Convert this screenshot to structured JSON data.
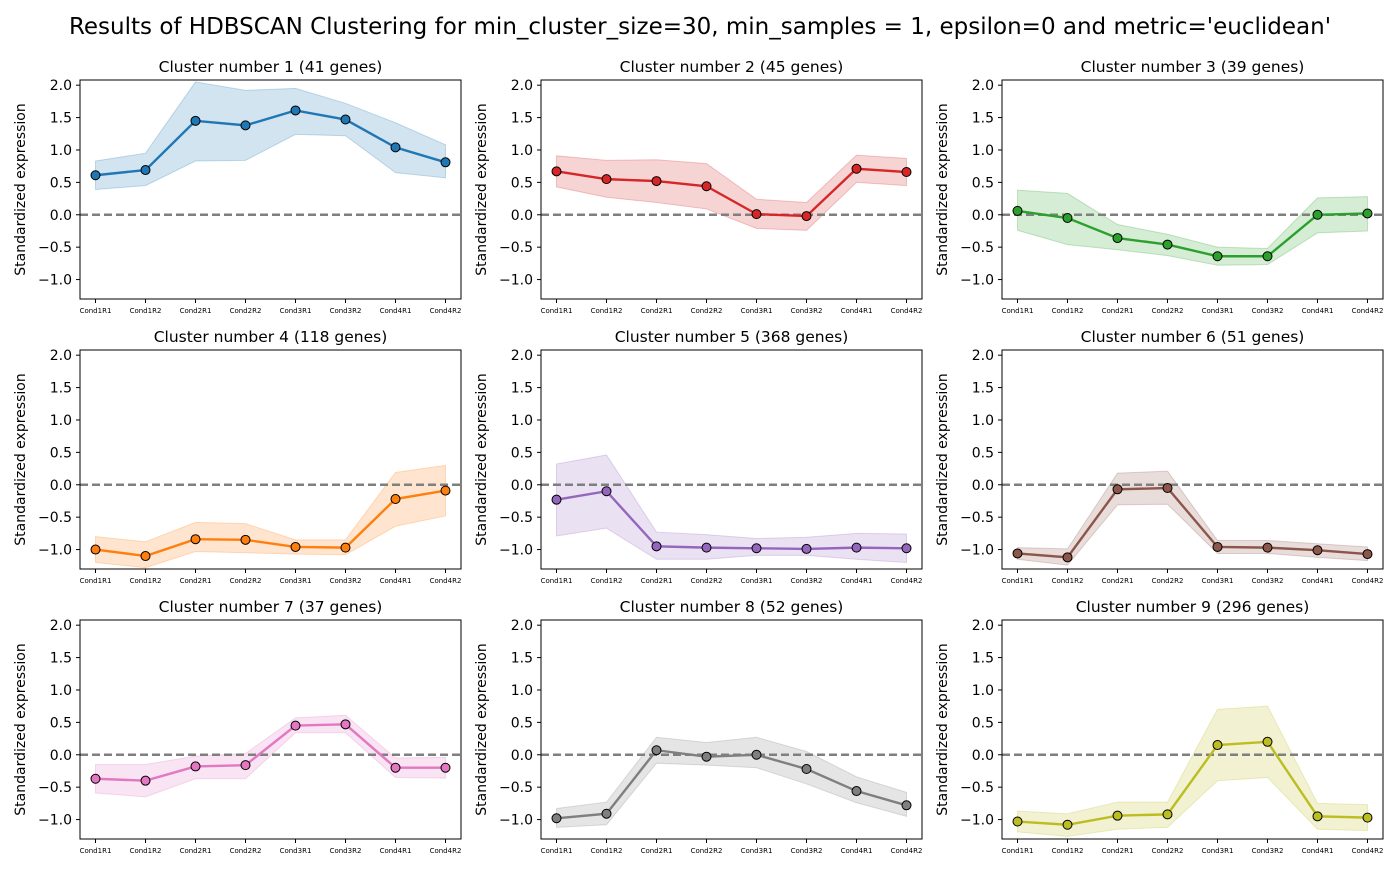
{
  "figure": {
    "title": "Results of HDBSCAN Clustering for min_cluster_size=30, min_samples = 1, epsilon=0 and metric='euclidean'"
  },
  "chart_data": [
    {
      "type": "line",
      "title": "Cluster number 1 (41 genes)",
      "ylabel": "Standardized expression",
      "xlabel": "",
      "categories": [
        "Cond1R1",
        "Cond1R2",
        "Cond2R1",
        "Cond2R2",
        "Cond3R1",
        "Cond3R2",
        "Cond4R1",
        "Cond4R2"
      ],
      "values": [
        0.61,
        0.69,
        1.45,
        1.38,
        1.61,
        1.47,
        1.04,
        0.81
      ],
      "band_upper": [
        0.83,
        0.95,
        2.05,
        1.92,
        1.95,
        1.72,
        1.42,
        1.08
      ],
      "band_lower": [
        0.39,
        0.45,
        0.83,
        0.84,
        1.24,
        1.22,
        0.65,
        0.57
      ],
      "color": "#1f77b4",
      "ylim": [
        -1.3,
        2.08
      ],
      "yticks": [
        2.0,
        1.5,
        1.0,
        0.5,
        0.0,
        -0.5,
        -1.0
      ],
      "reference_line": 0.0
    },
    {
      "type": "line",
      "title": "Cluster number 2 (45 genes)",
      "ylabel": "Standardized expression",
      "xlabel": "",
      "categories": [
        "Cond1R1",
        "Cond1R2",
        "Cond2R1",
        "Cond2R2",
        "Cond3R1",
        "Cond3R2",
        "Cond4R1",
        "Cond4R2"
      ],
      "values": [
        0.67,
        0.55,
        0.52,
        0.44,
        0.01,
        -0.02,
        0.71,
        0.66
      ],
      "band_upper": [
        0.91,
        0.84,
        0.85,
        0.79,
        0.24,
        0.19,
        0.92,
        0.87
      ],
      "band_lower": [
        0.43,
        0.27,
        0.19,
        0.09,
        -0.21,
        -0.24,
        0.5,
        0.45
      ],
      "color": "#d62728",
      "ylim": [
        -1.3,
        2.08
      ],
      "yticks": [
        2.0,
        1.5,
        1.0,
        0.5,
        0.0,
        -0.5,
        -1.0
      ],
      "reference_line": 0.0
    },
    {
      "type": "line",
      "title": "Cluster number 3 (39 genes)",
      "ylabel": "Standardized expression",
      "xlabel": "",
      "categories": [
        "Cond1R1",
        "Cond1R2",
        "Cond2R1",
        "Cond2R2",
        "Cond3R1",
        "Cond3R2",
        "Cond4R1",
        "Cond4R2"
      ],
      "values": [
        0.06,
        -0.05,
        -0.36,
        -0.46,
        -0.64,
        -0.64,
        0.0,
        0.02
      ],
      "band_upper": [
        0.38,
        0.33,
        -0.15,
        -0.3,
        -0.5,
        -0.52,
        0.26,
        0.28
      ],
      "band_lower": [
        -0.24,
        -0.46,
        -0.54,
        -0.63,
        -0.78,
        -0.77,
        -0.28,
        -0.25
      ],
      "color": "#2ca02c",
      "ylim": [
        -1.3,
        2.08
      ],
      "yticks": [
        2.0,
        1.5,
        1.0,
        0.5,
        0.0,
        -0.5,
        -1.0
      ],
      "reference_line": 0.0
    },
    {
      "type": "line",
      "title": "Cluster number 4 (118 genes)",
      "ylabel": "Standardized expression",
      "xlabel": "",
      "categories": [
        "Cond1R1",
        "Cond1R2",
        "Cond2R1",
        "Cond2R2",
        "Cond3R1",
        "Cond3R2",
        "Cond4R1",
        "Cond4R2"
      ],
      "values": [
        -1.0,
        -1.1,
        -0.84,
        -0.85,
        -0.96,
        -0.97,
        -0.22,
        -0.09
      ],
      "band_upper": [
        -0.8,
        -0.88,
        -0.58,
        -0.6,
        -0.85,
        -0.85,
        0.19,
        0.3
      ],
      "band_lower": [
        -1.2,
        -1.28,
        -1.03,
        -1.05,
        -1.07,
        -1.08,
        -0.64,
        -0.48
      ],
      "color": "#ff7f0e",
      "ylim": [
        -1.3,
        2.08
      ],
      "yticks": [
        2.0,
        1.5,
        1.0,
        0.5,
        0.0,
        -0.5,
        -1.0
      ],
      "reference_line": 0.0
    },
    {
      "type": "line",
      "title": "Cluster number 5 (368 genes)",
      "ylabel": "Standardized expression",
      "xlabel": "",
      "categories": [
        "Cond1R1",
        "Cond1R2",
        "Cond2R1",
        "Cond2R2",
        "Cond3R1",
        "Cond3R2",
        "Cond4R1",
        "Cond4R2"
      ],
      "values": [
        -0.23,
        -0.1,
        -0.95,
        -0.97,
        -0.98,
        -0.99,
        -0.97,
        -0.98
      ],
      "band_upper": [
        0.32,
        0.46,
        -0.73,
        -0.77,
        -0.83,
        -0.81,
        -0.75,
        -0.76
      ],
      "band_lower": [
        -0.79,
        -0.67,
        -1.15,
        -1.15,
        -1.09,
        -1.09,
        -1.15,
        -1.2
      ],
      "color": "#9467bd",
      "ylim": [
        -1.3,
        2.08
      ],
      "yticks": [
        2.0,
        1.5,
        1.0,
        0.5,
        0.0,
        -0.5,
        -1.0
      ],
      "reference_line": 0.0
    },
    {
      "type": "line",
      "title": "Cluster number 6 (51 genes)",
      "ylabel": "Standardized expression",
      "xlabel": "",
      "categories": [
        "Cond1R1",
        "Cond1R2",
        "Cond2R1",
        "Cond2R2",
        "Cond3R1",
        "Cond3R2",
        "Cond4R1",
        "Cond4R2"
      ],
      "values": [
        -1.06,
        -1.12,
        -0.07,
        -0.05,
        -0.96,
        -0.97,
        -1.01,
        -1.07
      ],
      "band_upper": [
        -0.97,
        -0.99,
        0.18,
        0.21,
        -0.86,
        -0.86,
        -0.91,
        -0.96
      ],
      "band_lower": [
        -1.15,
        -1.24,
        -0.31,
        -0.3,
        -1.06,
        -1.06,
        -1.12,
        -1.17
      ],
      "color": "#8c564b",
      "ylim": [
        -1.3,
        2.08
      ],
      "yticks": [
        2.0,
        1.5,
        1.0,
        0.5,
        0.0,
        -0.5,
        -1.0
      ],
      "reference_line": 0.0
    },
    {
      "type": "line",
      "title": "Cluster number 7 (37 genes)",
      "ylabel": "Standardized expression",
      "xlabel": "",
      "categories": [
        "Cond1R1",
        "Cond1R2",
        "Cond2R1",
        "Cond2R2",
        "Cond3R1",
        "Cond3R2",
        "Cond4R1",
        "Cond4R2"
      ],
      "values": [
        -0.37,
        -0.4,
        -0.18,
        -0.16,
        0.45,
        0.47,
        -0.2,
        -0.2
      ],
      "band_upper": [
        -0.15,
        -0.15,
        -0.02,
        0.02,
        0.57,
        0.61,
        -0.05,
        -0.04
      ],
      "band_lower": [
        -0.59,
        -0.65,
        -0.37,
        -0.37,
        0.34,
        0.34,
        -0.35,
        -0.36
      ],
      "color": "#e377c2",
      "ylim": [
        -1.3,
        2.08
      ],
      "yticks": [
        2.0,
        1.5,
        1.0,
        0.5,
        0.0,
        -0.5,
        -1.0
      ],
      "reference_line": 0.0
    },
    {
      "type": "line",
      "title": "Cluster number 8 (52 genes)",
      "ylabel": "Standardized expression",
      "xlabel": "",
      "categories": [
        "Cond1R1",
        "Cond1R2",
        "Cond2R1",
        "Cond2R2",
        "Cond3R1",
        "Cond3R2",
        "Cond4R1",
        "Cond4R2"
      ],
      "values": [
        -0.98,
        -0.91,
        0.07,
        -0.03,
        0.0,
        -0.22,
        -0.56,
        -0.78
      ],
      "band_upper": [
        -0.83,
        -0.73,
        0.27,
        0.19,
        0.27,
        0.05,
        -0.34,
        -0.58
      ],
      "band_lower": [
        -1.12,
        -1.08,
        -0.13,
        -0.16,
        -0.2,
        -0.45,
        -0.74,
        -0.95
      ],
      "color": "#7f7f7f",
      "ylim": [
        -1.3,
        2.08
      ],
      "yticks": [
        2.0,
        1.5,
        1.0,
        0.5,
        0.0,
        -0.5,
        -1.0
      ],
      "reference_line": 0.0
    },
    {
      "type": "line",
      "title": "Cluster number 9 (296 genes)",
      "ylabel": "Standardized expression",
      "xlabel": "",
      "categories": [
        "Cond1R1",
        "Cond1R2",
        "Cond2R1",
        "Cond2R2",
        "Cond3R1",
        "Cond3R2",
        "Cond4R1",
        "Cond4R2"
      ],
      "values": [
        -1.03,
        -1.08,
        -0.94,
        -0.92,
        0.15,
        0.2,
        -0.95,
        -0.97
      ],
      "band_upper": [
        -0.87,
        -0.91,
        -0.73,
        -0.73,
        0.7,
        0.75,
        -0.75,
        -0.77
      ],
      "band_lower": [
        -1.19,
        -1.26,
        -1.15,
        -1.12,
        -0.4,
        -0.35,
        -1.15,
        -1.17
      ],
      "color": "#bcbd22",
      "ylim": [
        -1.3,
        2.08
      ],
      "yticks": [
        2.0,
        1.5,
        1.0,
        0.5,
        0.0,
        -0.5,
        -1.0
      ],
      "reference_line": 0.0
    }
  ]
}
